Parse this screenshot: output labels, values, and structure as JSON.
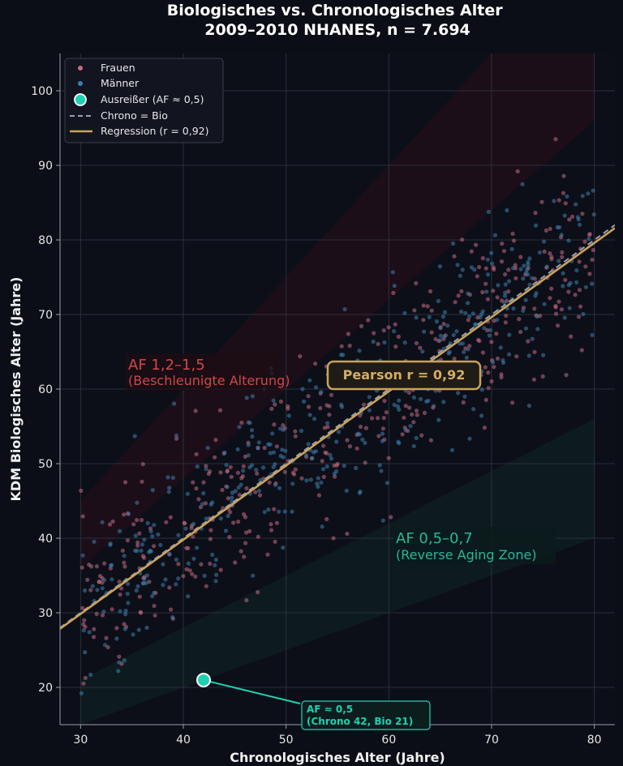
{
  "chart_data": {
    "type": "scatter",
    "title": [
      "Biologisches vs. Chronologisches Alter",
      "2009–2010 NHANES, n = 7.694"
    ],
    "xlabel": "Chronologisches Alter (Jahre)",
    "ylabel": "KDM Biologisches Alter (Jahre)",
    "xlim": [
      28,
      82
    ],
    "ylim": [
      15,
      105
    ],
    "xticks": [
      30,
      40,
      50,
      60,
      70,
      80
    ],
    "yticks": [
      20,
      30,
      40,
      50,
      60,
      70,
      80,
      90,
      100
    ],
    "grid": true,
    "legend": {
      "placement": "top-left",
      "entries": [
        {
          "label": "Frauen",
          "kind": "dot",
          "color": "#c76b85"
        },
        {
          "label": "Männer",
          "kind": "dot",
          "color": "#3f7fb0"
        },
        {
          "label": "Ausreißer (AF ≈ 0,5)",
          "kind": "big-dot",
          "color": "#1fd1b0"
        },
        {
          "label": "Chrono = Bio",
          "kind": "dashed",
          "color": "#9aa0ae"
        },
        {
          "label": "Regression (r = 0,92)",
          "kind": "line",
          "color": "#c9a35a"
        }
      ]
    },
    "series": [
      {
        "name": "Frauen",
        "color": "#c76b85",
        "n_points_drawn": 420,
        "trend": "y ≈ x",
        "x_range": [
          30,
          80
        ],
        "spread_sd": 6
      },
      {
        "name": "Männer",
        "color": "#3f7fb0",
        "n_points_drawn": 420,
        "trend": "y ≈ x",
        "x_range": [
          30,
          80
        ],
        "spread_sd": 6
      }
    ],
    "reference_line": {
      "label": "Chrono = Bio",
      "slope": 1.0,
      "intercept": 0
    },
    "regression": {
      "label": "Regression (r = 0,92)",
      "slope": 0.995,
      "intercept": 0.0,
      "color": "#c9a35a"
    },
    "zones": [
      {
        "label": "AF 1,2–1,5",
        "sublabel": "(Beschleunigte Alterung)",
        "factor_low": 1.2,
        "factor_high": 1.5,
        "color": "#d14a4a",
        "label_x": 34.5,
        "label_y": 63
      },
      {
        "label": "AF 0,5–0,7",
        "sublabel": "(Reverse Aging Zone)",
        "factor_low": 0.5,
        "factor_high": 0.7,
        "color": "#2bb69a",
        "label_x": 60.5,
        "label_y": 40
      }
    ],
    "outlier": {
      "x": 42,
      "y": 21,
      "label": "AF ≈ 0,5",
      "sublabel": "(Chrono 42, Bio 21)",
      "label_x": 52,
      "label_y": 16
    },
    "annotation": {
      "text": "Pearson r = 0,92",
      "x": 62,
      "y": 62
    }
  }
}
